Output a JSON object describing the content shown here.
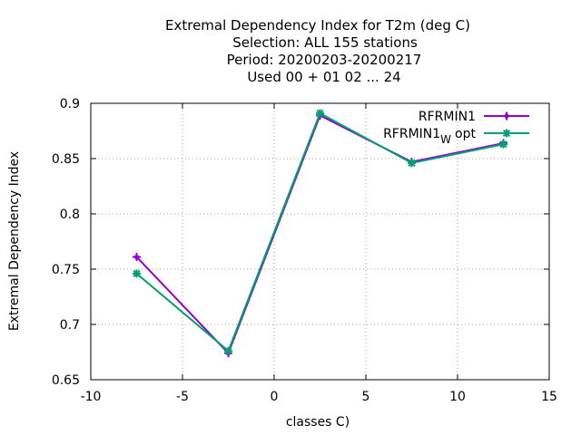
{
  "chart_data": {
    "type": "line",
    "title_lines": [
      "Extremal Dependency Index  for T2m (deg C)",
      "Selection: ALL    155 stations",
      "Period: 20200203-20200217",
      "Used  00 + 01 02 ... 24"
    ],
    "xlabel": "classes C)",
    "ylabel": "Extremal Dependency Index",
    "xlim": [
      -10,
      15
    ],
    "ylim": [
      0.65,
      0.9
    ],
    "x_ticks": [
      -10,
      -5,
      0,
      5,
      10,
      15
    ],
    "y_ticks": [
      0.65,
      0.7,
      0.75,
      0.8,
      0.85,
      0.9
    ],
    "x_tick_labels": [
      "-10",
      "-5",
      "0",
      "5",
      "10",
      "15"
    ],
    "y_tick_labels": [
      "0.65",
      "0.7",
      "0.75",
      "0.8",
      "0.85",
      "0.9"
    ],
    "grid": true,
    "legend_position": "top-right",
    "series": [
      {
        "name": "RFRMIN1",
        "color": "#9400d3",
        "marker": "plus",
        "x": [
          -7.5,
          -2.5,
          2.5,
          7.5,
          12.5
        ],
        "y": [
          0.761,
          0.674,
          0.889,
          0.847,
          0.864
        ]
      },
      {
        "name_main": "RFRMIN1",
        "name_sub": "W",
        "name_tail": "opt",
        "color": "#009e73",
        "marker": "star",
        "x": [
          -7.5,
          -2.5,
          2.5,
          7.5,
          12.5
        ],
        "y": [
          0.746,
          0.676,
          0.891,
          0.846,
          0.863
        ]
      }
    ]
  }
}
